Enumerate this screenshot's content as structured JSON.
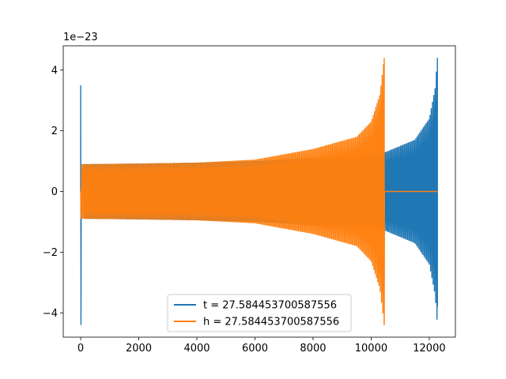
{
  "chart_data": {
    "type": "line",
    "title": "",
    "xlabel": "",
    "ylabel": "",
    "y_offset_label": "1e−23",
    "xlim": [
      -600,
      12900
    ],
    "ylim": [
      -4.8,
      4.8
    ],
    "x_ticks": [
      0,
      2000,
      4000,
      6000,
      8000,
      10000,
      12000
    ],
    "x_tick_labels": [
      "0",
      "2000",
      "4000",
      "6000",
      "8000",
      "10000",
      "12000"
    ],
    "y_ticks": [
      -4,
      -2,
      0,
      2,
      4
    ],
    "y_tick_labels": [
      "−4",
      "−2",
      "0",
      "2",
      "4"
    ],
    "grid": false,
    "legend_position": "lower-center",
    "series": [
      {
        "name": "t = 27.584453700587556",
        "color": "#1f77b4",
        "x_start": 0,
        "x_end": 12280,
        "initial_spike": 3.5,
        "initial_spike_min": -4.4,
        "envelope": [
          {
            "x": 200,
            "amp": 0.9
          },
          {
            "x": 2000,
            "amp": 0.92
          },
          {
            "x": 4000,
            "amp": 0.95
          },
          {
            "x": 6000,
            "amp": 1.0
          },
          {
            "x": 8000,
            "amp": 1.1
          },
          {
            "x": 10000,
            "amp": 1.2
          },
          {
            "x": 10500,
            "amp": 1.3
          },
          {
            "x": 11500,
            "amp": 1.7
          },
          {
            "x": 12000,
            "amp": 2.4
          },
          {
            "x": 12200,
            "amp": 3.4
          },
          {
            "x": 12280,
            "amp": 4.4
          }
        ]
      },
      {
        "name": "h = 27.584453700587556",
        "color": "#ff7f0e",
        "x_start": 0,
        "x_end": 12280,
        "signal_end": 10450,
        "envelope": [
          {
            "x": 0,
            "amp": 0.9
          },
          {
            "x": 2000,
            "amp": 0.92
          },
          {
            "x": 4000,
            "amp": 0.95
          },
          {
            "x": 6000,
            "amp": 1.05
          },
          {
            "x": 8000,
            "amp": 1.4
          },
          {
            "x": 9500,
            "amp": 1.8
          },
          {
            "x": 10000,
            "amp": 2.3
          },
          {
            "x": 10300,
            "amp": 3.2
          },
          {
            "x": 10450,
            "amp": 4.4
          }
        ]
      }
    ]
  }
}
